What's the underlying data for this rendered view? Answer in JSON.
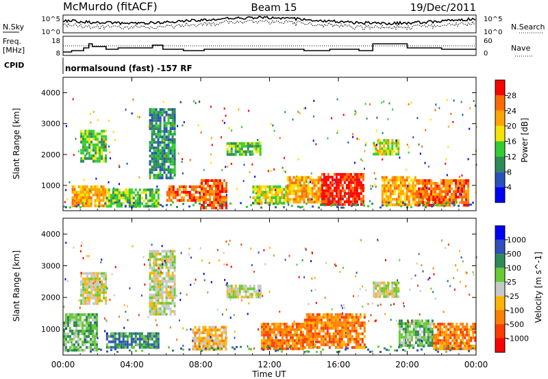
{
  "header": {
    "station": "McMurdo (fitACF)",
    "beam": "Beam 15",
    "date": "19/Dec/2011"
  },
  "noise_panel": {
    "left_label": "N.Sky",
    "right_label": "N.Search",
    "left_ticks": [
      "10^5",
      "10^0"
    ],
    "right_ticks": [
      "10^5",
      "10^0"
    ]
  },
  "freq_panel": {
    "left_label_1": "Freq.",
    "left_label_2": "[MHz]",
    "right_label": "Nave",
    "left_ticks": [
      "18",
      "8"
    ],
    "right_ticks": [
      "60",
      "0"
    ]
  },
  "cpid": {
    "label": "CPID",
    "text": "normalsound (fast) -157 RF"
  },
  "colors": {
    "power": [
      "#0000ff",
      "#2a52be",
      "#2e8b57",
      "#32cd32",
      "#f5e400",
      "#ffa500",
      "#ff6a00",
      "#ff0000"
    ],
    "velocity": [
      "#0000ff",
      "#3050c0",
      "#2e8b57",
      "#66cc33",
      "#c8c8c8",
      "#ffb400",
      "#ff7f00",
      "#ff3c00",
      "#ff0000"
    ]
  },
  "chart_data": [
    {
      "type": "heatmap",
      "name": "power-panel",
      "ylabel": "Slant Range [km]",
      "yticks": [
        "1000",
        "2000",
        "3000",
        "4000"
      ],
      "ylim": [
        180,
        4500
      ],
      "colorbar": {
        "label": "Power [dB]",
        "ticks": [
          "4",
          "8",
          "12",
          "16",
          "20",
          "24",
          "28"
        ],
        "range": [
          0,
          32
        ]
      },
      "echo_regions": [
        {
          "t": [
            0.5,
            2.5
          ],
          "r": [
            300,
            1000
          ],
          "level": 5
        },
        {
          "t": [
            1.0,
            2.5
          ],
          "r": [
            1800,
            2800
          ],
          "level": 3
        },
        {
          "t": [
            2.5,
            5.5
          ],
          "r": [
            300,
            900
          ],
          "level": 3
        },
        {
          "t": [
            5.0,
            6.5
          ],
          "r": [
            1200,
            3500
          ],
          "level": 2
        },
        {
          "t": [
            6.0,
            8.0
          ],
          "r": [
            500,
            1000
          ],
          "level": 6
        },
        {
          "t": [
            8.0,
            9.5
          ],
          "r": [
            300,
            1200
          ],
          "level": 6
        },
        {
          "t": [
            9.5,
            11.5
          ],
          "r": [
            2000,
            2400
          ],
          "level": 3
        },
        {
          "t": [
            11.0,
            13.0
          ],
          "r": [
            400,
            1000
          ],
          "level": 4
        },
        {
          "t": [
            13.0,
            15.0
          ],
          "r": [
            500,
            1300
          ],
          "level": 5
        },
        {
          "t": [
            15.0,
            17.5
          ],
          "r": [
            400,
            1400
          ],
          "level": 7
        },
        {
          "t": [
            18.0,
            19.5
          ],
          "r": [
            2000,
            2500
          ],
          "level": 4
        },
        {
          "t": [
            18.5,
            20.5
          ],
          "r": [
            400,
            1300
          ],
          "level": 5
        },
        {
          "t": [
            20.5,
            23.5
          ],
          "r": [
            400,
            1200
          ],
          "level": 6
        }
      ]
    },
    {
      "type": "heatmap",
      "name": "velocity-panel",
      "ylabel": "Slant Range [km]",
      "yticks": [
        "1000",
        "2000",
        "3000",
        "4000"
      ],
      "ylim": [
        180,
        4500
      ],
      "colorbar": {
        "label": "Velocity [m s^-1]",
        "ticks": [
          "1000",
          "500",
          "100",
          "25",
          "-25",
          "-100",
          "-500",
          "-1000"
        ]
      },
      "echo_regions": [
        {
          "t": [
            0.0,
            2.0
          ],
          "r": [
            300,
            1500
          ],
          "level": 3
        },
        {
          "t": [
            1.0,
            2.5
          ],
          "r": [
            1800,
            2800
          ],
          "level": 4
        },
        {
          "t": [
            2.5,
            5.5
          ],
          "r": [
            400,
            900
          ],
          "level": 2
        },
        {
          "t": [
            5.0,
            6.5
          ],
          "r": [
            1500,
            3500
          ],
          "level": 4
        },
        {
          "t": [
            7.5,
            9.5
          ],
          "r": [
            400,
            1100
          ],
          "level": 5
        },
        {
          "t": [
            9.5,
            11.5
          ],
          "r": [
            2000,
            2400
          ],
          "level": 4
        },
        {
          "t": [
            11.5,
            14.0
          ],
          "r": [
            400,
            1200
          ],
          "level": 6
        },
        {
          "t": [
            14.0,
            17.5
          ],
          "r": [
            400,
            1500
          ],
          "level": 6
        },
        {
          "t": [
            18.0,
            19.5
          ],
          "r": [
            2000,
            2500
          ],
          "level": 4
        },
        {
          "t": [
            19.5,
            21.5
          ],
          "r": [
            500,
            1300
          ],
          "level": 3
        },
        {
          "t": [
            21.5,
            24.0
          ],
          "r": [
            400,
            1200
          ],
          "level": 6
        }
      ]
    }
  ],
  "time_axis": {
    "label": "Time UT",
    "ticks": [
      "00:00",
      "04:00",
      "08:00",
      "12:00",
      "16:00",
      "20:00",
      "00:00"
    ],
    "range_hours": [
      0,
      24
    ]
  }
}
